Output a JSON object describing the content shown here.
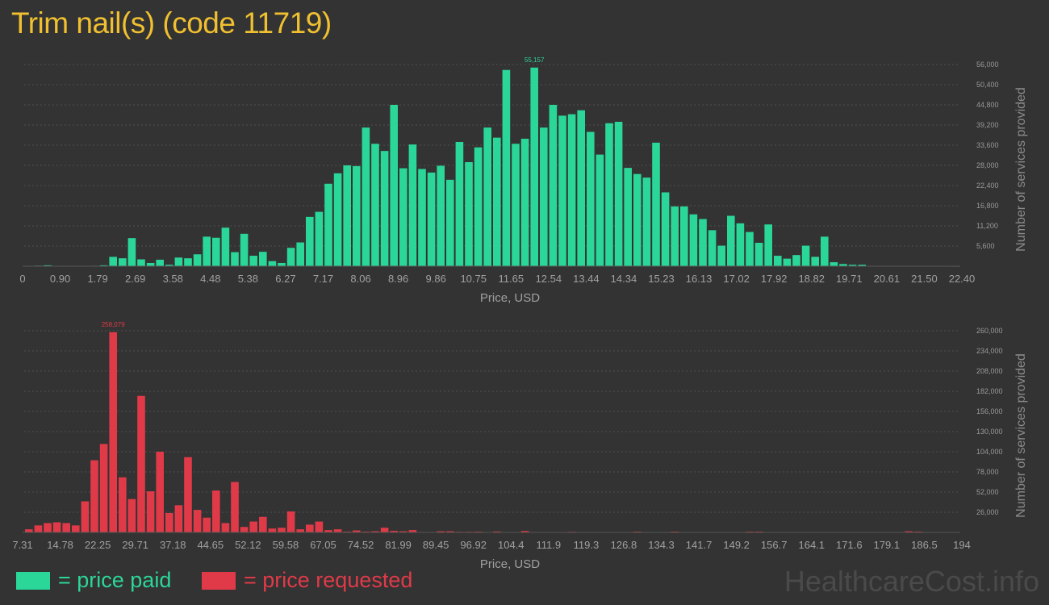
{
  "title": "Trim nail(s) (code 11719)",
  "colors": {
    "paid": "#2bd699",
    "requested": "#e03a48",
    "title": "#f0c030"
  },
  "legend": {
    "paid": "= price paid",
    "requested": "= price requested"
  },
  "watermark": "HealthcareCost.info",
  "chart_data": [
    {
      "type": "bar",
      "name": "price paid",
      "xlabel": "Price, USD",
      "ylabel": "Number of services provided",
      "xlim": [
        0,
        22.4
      ],
      "ylim": [
        0,
        56000
      ],
      "x_ticks": [
        "0",
        "0.90",
        "1.79",
        "2.69",
        "3.58",
        "4.48",
        "5.38",
        "6.27",
        "7.17",
        "8.06",
        "8.96",
        "9.86",
        "10.75",
        "11.65",
        "12.54",
        "13.44",
        "14.34",
        "15.23",
        "16.13",
        "17.02",
        "17.92",
        "18.82",
        "19.71",
        "20.61",
        "21.50",
        "22.40"
      ],
      "y_ticks": [
        "5,600",
        "11,200",
        "16,800",
        "22,400",
        "28,000",
        "33,600",
        "39,200",
        "44,800",
        "50,400",
        "56,000"
      ],
      "max_label": "55,157",
      "bin_width": 0.224,
      "values": [
        50,
        150,
        250,
        60,
        40,
        60,
        80,
        120,
        250,
        2600,
        2200,
        7800,
        1900,
        900,
        1800,
        400,
        2400,
        2200,
        3300,
        8200,
        7900,
        10700,
        3900,
        9000,
        2900,
        4000,
        1400,
        900,
        5100,
        6600,
        13700,
        15100,
        22900,
        25800,
        28000,
        27800,
        38500,
        34000,
        32000,
        44800,
        27200,
        33800,
        27000,
        26000,
        27900,
        24000,
        34500,
        28900,
        33000,
        38500,
        35700,
        54500,
        34000,
        35400,
        55157,
        38500,
        44800,
        41800,
        42200,
        43300,
        37300,
        31000,
        39700,
        40100,
        27300,
        25600,
        24600,
        34300,
        20500,
        16600,
        16600,
        14400,
        13100,
        10000,
        5700,
        14000,
        11900,
        9500,
        6500,
        11600,
        2900,
        2100,
        3100,
        5700,
        2600,
        8200,
        1100,
        600,
        400,
        400,
        100,
        50,
        50,
        50,
        50,
        50,
        40,
        30,
        20,
        15
      ]
    },
    {
      "type": "bar",
      "name": "price requested",
      "xlabel": "Price, USD",
      "ylabel": "Number of services provided",
      "xlim": [
        7.31,
        194
      ],
      "ylim": [
        0,
        260000
      ],
      "x_ticks": [
        "7.31",
        "14.78",
        "22.25",
        "29.71",
        "37.18",
        "44.65",
        "52.12",
        "59.58",
        "67.05",
        "74.52",
        "81.99",
        "89.45",
        "96.92",
        "104.4",
        "111.9",
        "119.3",
        "126.8",
        "134.3",
        "141.7",
        "149.2",
        "156.7",
        "164.1",
        "171.6",
        "179.1",
        "186.5",
        "194"
      ],
      "y_ticks": [
        "26,000",
        "52,000",
        "78,000",
        "104,000",
        "130,000",
        "156,000",
        "182,000",
        "208,000",
        "234,000",
        "260,000"
      ],
      "max_label": "258,079",
      "bin_width": 1.8669,
      "values": [
        4000,
        9000,
        12000,
        13000,
        12000,
        9000,
        40000,
        93000,
        114000,
        258079,
        71000,
        43000,
        176000,
        53000,
        104000,
        25000,
        35000,
        97000,
        29000,
        19000,
        54000,
        12000,
        65000,
        7000,
        14000,
        20000,
        5000,
        6000,
        27000,
        4000,
        10000,
        14000,
        3000,
        4000,
        1000,
        2500,
        1000,
        1500,
        6000,
        2000,
        1500,
        3000,
        500,
        500,
        1500,
        1500,
        800,
        800,
        1000,
        300,
        1200,
        300,
        500,
        1800,
        300,
        200,
        500,
        500,
        800,
        300,
        200,
        300,
        200,
        200,
        100,
        1000,
        200,
        200,
        200,
        1000,
        100,
        200,
        100,
        100,
        100,
        100,
        200,
        1000,
        1000,
        200,
        100,
        200,
        100,
        500,
        100,
        200,
        100,
        500,
        100,
        200,
        200,
        200,
        200,
        200,
        1500,
        1000,
        300,
        500,
        300,
        300
      ]
    }
  ]
}
